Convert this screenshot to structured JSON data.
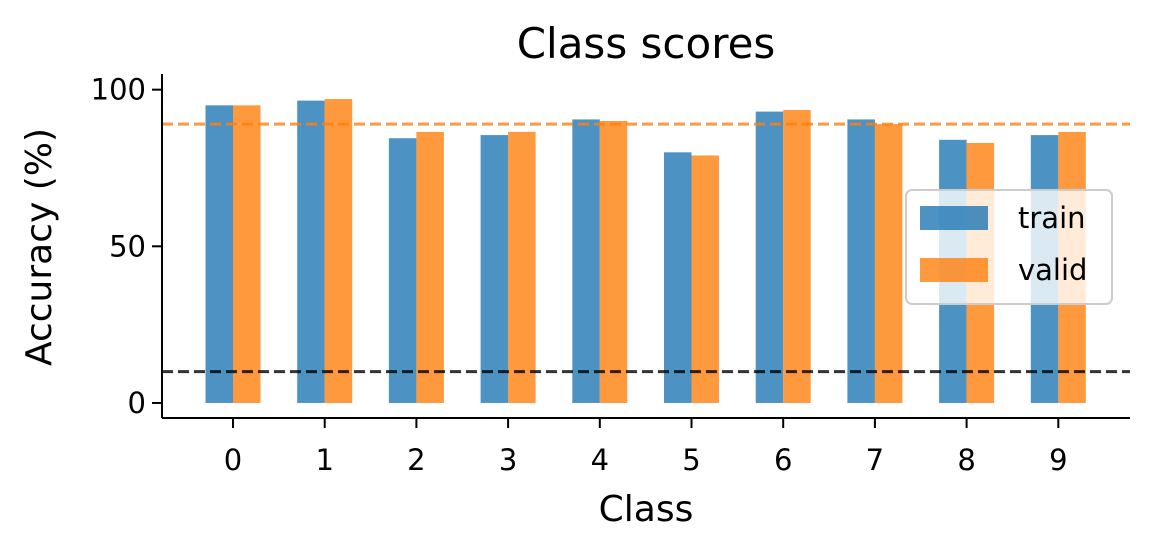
{
  "chart_data": {
    "type": "bar",
    "title": "Class scores",
    "xlabel": "Class",
    "ylabel": "Accuracy (%)",
    "categories": [
      "0",
      "1",
      "2",
      "3",
      "4",
      "5",
      "6",
      "7",
      "8",
      "9"
    ],
    "series": [
      {
        "name": "train",
        "color": "#1f77b4",
        "values": [
          95,
          96.5,
          84.5,
          85.5,
          90.5,
          80,
          93,
          90.5,
          84,
          85.5
        ]
      },
      {
        "name": "valid",
        "color": "#ff7f0e",
        "values": [
          95,
          97,
          86.5,
          86.5,
          90,
          79,
          93.5,
          89,
          83,
          86.5
        ]
      }
    ],
    "ylim": [
      -4.8,
      105
    ],
    "yticks": [
      0,
      50,
      100
    ],
    "reference_lines": [
      {
        "y": 89,
        "color": "#ff7f0e",
        "style": "dashed"
      },
      {
        "y": 10,
        "color": "#000000",
        "style": "dashed"
      }
    ],
    "legend_position": "right",
    "grid": false
  }
}
